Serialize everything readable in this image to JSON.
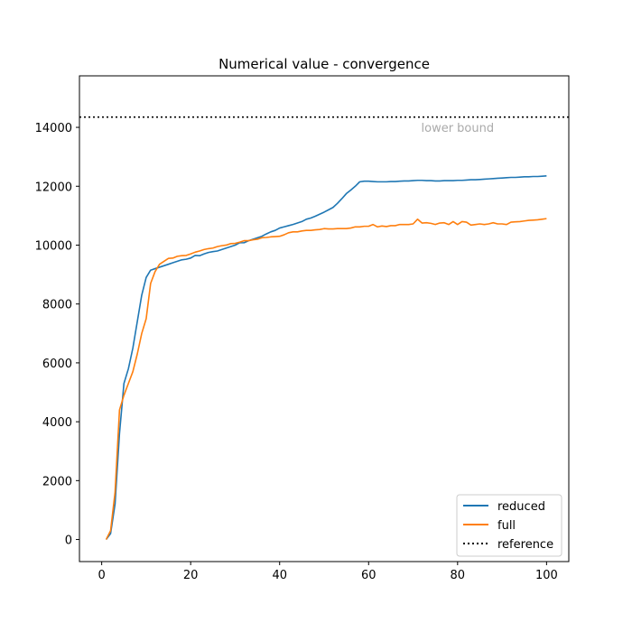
{
  "chart_data": {
    "type": "line",
    "title": "Numerical value - convergence",
    "xlabel": "",
    "ylabel": "",
    "xlim": [
      -5,
      105
    ],
    "ylim": [
      -750,
      15750
    ],
    "x_ticks": [
      0,
      20,
      40,
      60,
      80,
      100
    ],
    "y_ticks": [
      0,
      2000,
      4000,
      6000,
      8000,
      10000,
      12000,
      14000
    ],
    "grid": false,
    "legend_position": "lower-right",
    "series": [
      {
        "name": "reduced",
        "color": "#1f77b4",
        "x": [
          1,
          2,
          3,
          4,
          5,
          6,
          7,
          8,
          9,
          10,
          11,
          12,
          13,
          14,
          15,
          16,
          17,
          18,
          19,
          20,
          21,
          22,
          23,
          24,
          25,
          26,
          27,
          28,
          29,
          30,
          31,
          32,
          33,
          34,
          35,
          36,
          37,
          38,
          39,
          40,
          41,
          42,
          43,
          44,
          45,
          46,
          47,
          48,
          49,
          50,
          51,
          52,
          53,
          54,
          55,
          56,
          57,
          58,
          59,
          60,
          61,
          62,
          63,
          64,
          65,
          66,
          67,
          68,
          69,
          70,
          71,
          72,
          73,
          74,
          75,
          76,
          77,
          78,
          79,
          80,
          81,
          82,
          83,
          84,
          85,
          86,
          87,
          88,
          89,
          90,
          91,
          92,
          93,
          94,
          95,
          96,
          97,
          98,
          99,
          100
        ],
        "values": [
          0,
          200,
          1200,
          3600,
          5300,
          5800,
          6500,
          7400,
          8300,
          8900,
          9150,
          9200,
          9250,
          9300,
          9350,
          9400,
          9450,
          9500,
          9520,
          9560,
          9650,
          9640,
          9700,
          9750,
          9780,
          9800,
          9850,
          9900,
          9950,
          10000,
          10080,
          10080,
          10150,
          10200,
          10250,
          10300,
          10380,
          10450,
          10500,
          10580,
          10620,
          10660,
          10700,
          10750,
          10800,
          10880,
          10920,
          10980,
          11050,
          11120,
          11200,
          11280,
          11420,
          11580,
          11750,
          11870,
          12000,
          12150,
          12170,
          12170,
          12160,
          12150,
          12150,
          12150,
          12160,
          12160,
          12170,
          12180,
          12180,
          12190,
          12200,
          12200,
          12190,
          12190,
          12180,
          12180,
          12190,
          12190,
          12190,
          12200,
          12200,
          12210,
          12220,
          12220,
          12230,
          12240,
          12250,
          12260,
          12270,
          12280,
          12290,
          12300,
          12300,
          12310,
          12320,
          12320,
          12330,
          12330,
          12340,
          12350
        ]
      },
      {
        "name": "full",
        "color": "#ff7f0e",
        "x": [
          1,
          2,
          3,
          4,
          5,
          6,
          7,
          8,
          9,
          10,
          11,
          12,
          13,
          14,
          15,
          16,
          17,
          18,
          19,
          20,
          21,
          22,
          23,
          24,
          25,
          26,
          27,
          28,
          29,
          30,
          31,
          32,
          33,
          34,
          35,
          36,
          37,
          38,
          39,
          40,
          41,
          42,
          43,
          44,
          45,
          46,
          47,
          48,
          49,
          50,
          51,
          52,
          53,
          54,
          55,
          56,
          57,
          58,
          59,
          60,
          61,
          62,
          63,
          64,
          65,
          66,
          67,
          68,
          69,
          70,
          71,
          72,
          73,
          74,
          75,
          76,
          77,
          78,
          79,
          80,
          81,
          82,
          83,
          84,
          85,
          86,
          87,
          88,
          89,
          90,
          91,
          92,
          93,
          94,
          95,
          96,
          97,
          98,
          99,
          100
        ],
        "values": [
          0,
          300,
          1600,
          4400,
          4900,
          5300,
          5700,
          6300,
          7000,
          7500,
          8700,
          9100,
          9350,
          9450,
          9550,
          9560,
          9620,
          9640,
          9650,
          9700,
          9760,
          9800,
          9850,
          9880,
          9900,
          9950,
          9980,
          10000,
          10050,
          10060,
          10100,
          10150,
          10150,
          10180,
          10200,
          10250,
          10260,
          10280,
          10290,
          10300,
          10350,
          10420,
          10450,
          10450,
          10480,
          10500,
          10500,
          10520,
          10530,
          10560,
          10550,
          10550,
          10560,
          10560,
          10560,
          10580,
          10620,
          10620,
          10640,
          10640,
          10700,
          10620,
          10650,
          10630,
          10660,
          10660,
          10700,
          10700,
          10700,
          10720,
          10880,
          10750,
          10760,
          10740,
          10700,
          10750,
          10760,
          10700,
          10800,
          10700,
          10800,
          10780,
          10680,
          10700,
          10720,
          10700,
          10720,
          10760,
          10720,
          10720,
          10700,
          10780,
          10790,
          10800,
          10820,
          10840,
          10850,
          10860,
          10880,
          10900
        ]
      }
    ],
    "reference": {
      "name": "reference",
      "value": 14350,
      "color": "#000000",
      "style": "dotted"
    },
    "annotation": {
      "text": "lower bound",
      "x": 80,
      "y": 14000,
      "color": "#aaaaaa"
    }
  }
}
